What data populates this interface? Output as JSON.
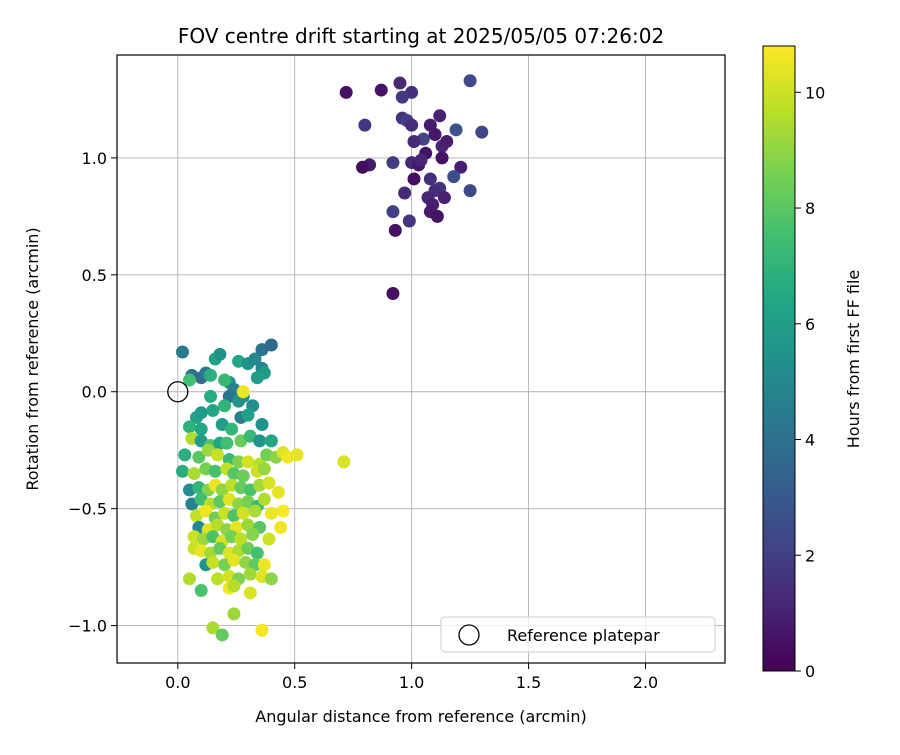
{
  "chart_data": {
    "type": "scatter",
    "title": "FOV centre drift starting at 2025/05/05 07:26:02",
    "xlabel": "Angular distance from reference (arcmin)",
    "ylabel": "Rotation from reference (arcmin)",
    "xlim": [
      -0.26,
      2.34
    ],
    "ylim": [
      -1.16,
      1.44
    ],
    "xticks": [
      "0.0",
      "0.5",
      "1.0",
      "1.5",
      "2.0"
    ],
    "yticks": [
      "−1.0",
      "−0.5",
      "0.0",
      "0.5",
      "1.0"
    ],
    "grid": true,
    "colorbar": {
      "label": "Hours from first FF file",
      "colormap": "viridis",
      "range": [
        0,
        10.8
      ],
      "ticks": [
        "0",
        "2",
        "4",
        "6",
        "8",
        "10"
      ]
    },
    "legend": {
      "location": "lower-right",
      "entries": [
        {
          "label": "Reference platepar",
          "marker": "open-circle",
          "x": 0.0,
          "y": 0.0
        }
      ]
    },
    "series": [
      {
        "points": [
          [
            0.92,
            0.42,
            0.4
          ],
          [
            0.72,
            1.28,
            0.5
          ],
          [
            0.87,
            1.29,
            0.6
          ],
          [
            0.95,
            1.32,
            1.2
          ],
          [
            1.0,
            1.28,
            1.5
          ],
          [
            0.96,
            1.26,
            1.8
          ],
          [
            1.25,
            1.33,
            2.5
          ],
          [
            1.3,
            1.11,
            2.3
          ],
          [
            1.19,
            1.12,
            2.8
          ],
          [
            1.12,
            1.18,
            1.0
          ],
          [
            1.08,
            1.14,
            0.8
          ],
          [
            1.1,
            1.1,
            0.7
          ],
          [
            0.96,
            1.17,
            1.6
          ],
          [
            0.98,
            1.16,
            2.0
          ],
          [
            1.0,
            1.14,
            1.4
          ],
          [
            0.8,
            1.14,
            1.7
          ],
          [
            1.05,
            1.08,
            2.2
          ],
          [
            1.01,
            1.07,
            1.3
          ],
          [
            1.13,
            1.05,
            1.1
          ],
          [
            1.15,
            1.07,
            0.9
          ],
          [
            1.06,
            1.02,
            0.6
          ],
          [
            1.13,
            1.0,
            0.5
          ],
          [
            0.82,
            0.97,
            0.8
          ],
          [
            0.79,
            0.96,
            0.3
          ],
          [
            0.92,
            0.98,
            1.9
          ],
          [
            1.0,
            0.98,
            1.2
          ],
          [
            1.03,
            0.97,
            0.7
          ],
          [
            1.04,
            0.99,
            1.1
          ],
          [
            1.21,
            0.96,
            0.9
          ],
          [
            1.18,
            0.92,
            2.6
          ],
          [
            1.01,
            0.91,
            0.4
          ],
          [
            1.08,
            0.91,
            1.5
          ],
          [
            1.12,
            0.87,
            1.8
          ],
          [
            1.1,
            0.86,
            1.4
          ],
          [
            0.97,
            0.85,
            1.3
          ],
          [
            1.14,
            0.83,
            1.0
          ],
          [
            1.25,
            0.86,
            2.4
          ],
          [
            1.07,
            0.83,
            1.2
          ],
          [
            1.09,
            0.8,
            0.9
          ],
          [
            1.08,
            0.77,
            0.8
          ],
          [
            0.92,
            0.77,
            2.1
          ],
          [
            1.11,
            0.75,
            0.6
          ],
          [
            0.99,
            0.73,
            1.6
          ],
          [
            0.93,
            0.69,
            0.5
          ],
          [
            0.02,
            0.17,
            4.5
          ],
          [
            0.06,
            0.07,
            4.2
          ],
          [
            0.1,
            0.06,
            3.8
          ],
          [
            0.12,
            0.08,
            4.4
          ],
          [
            0.16,
            0.14,
            6.2
          ],
          [
            0.18,
            0.16,
            5.4
          ],
          [
            0.14,
            0.07,
            6.8
          ],
          [
            0.22,
            0.04,
            5.5
          ],
          [
            0.26,
            0.13,
            6.4
          ],
          [
            0.3,
            0.12,
            5.6
          ],
          [
            0.33,
            0.14,
            5.1
          ],
          [
            0.36,
            0.18,
            4.0
          ],
          [
            0.4,
            0.2,
            3.7
          ],
          [
            0.36,
            0.1,
            4.9
          ],
          [
            0.37,
            0.08,
            5.8
          ],
          [
            0.34,
            0.06,
            6.0
          ],
          [
            0.05,
            0.05,
            7.5
          ],
          [
            0.2,
            0.05,
            7.2
          ],
          [
            0.24,
            0.01,
            4.7
          ],
          [
            0.28,
            -0.02,
            5.1
          ],
          [
            0.14,
            -0.02,
            6.6
          ],
          [
            0.22,
            -0.02,
            4.1
          ],
          [
            0.2,
            -0.06,
            7.0
          ],
          [
            0.26,
            -0.04,
            5.5
          ],
          [
            0.32,
            -0.06,
            5.3
          ],
          [
            0.36,
            -0.14,
            5.4
          ],
          [
            0.08,
            -0.11,
            6.2
          ],
          [
            0.1,
            -0.09,
            5.8
          ],
          [
            0.15,
            -0.08,
            6.3
          ],
          [
            0.27,
            -0.11,
            4.6
          ],
          [
            0.3,
            -0.1,
            6.1
          ],
          [
            0.05,
            -0.15,
            6.9
          ],
          [
            0.1,
            -0.16,
            6.5
          ],
          [
            0.19,
            -0.14,
            6.0
          ],
          [
            0.23,
            -0.16,
            7.1
          ],
          [
            0.06,
            -0.2,
            9.5
          ],
          [
            0.1,
            -0.21,
            5.9
          ],
          [
            0.14,
            -0.23,
            7.8
          ],
          [
            0.18,
            -0.22,
            6.4
          ],
          [
            0.21,
            -0.22,
            7.5
          ],
          [
            0.27,
            -0.21,
            8.3
          ],
          [
            0.31,
            -0.19,
            7.2
          ],
          [
            0.35,
            -0.21,
            5.6
          ],
          [
            0.4,
            -0.21,
            6.4
          ],
          [
            0.03,
            -0.27,
            6.8
          ],
          [
            0.09,
            -0.28,
            8.0
          ],
          [
            0.13,
            -0.25,
            9.2
          ],
          [
            0.17,
            -0.27,
            9.9
          ],
          [
            0.22,
            -0.29,
            7.3
          ],
          [
            0.26,
            -0.3,
            8.7
          ],
          [
            0.3,
            -0.3,
            10.1
          ],
          [
            0.35,
            -0.31,
            9.6
          ],
          [
            0.38,
            -0.27,
            8.5
          ],
          [
            0.42,
            -0.28,
            8.9
          ],
          [
            0.45,
            -0.26,
            10.3
          ],
          [
            0.47,
            -0.28,
            10.6
          ],
          [
            0.51,
            -0.27,
            10.4
          ],
          [
            0.71,
            -0.3,
            10.2
          ],
          [
            0.02,
            -0.34,
            6.7
          ],
          [
            0.07,
            -0.35,
            9.4
          ],
          [
            0.12,
            -0.33,
            8.6
          ],
          [
            0.16,
            -0.34,
            7.6
          ],
          [
            0.21,
            -0.33,
            9.8
          ],
          [
            0.24,
            -0.35,
            7.9
          ],
          [
            0.28,
            -0.36,
            8.4
          ],
          [
            0.34,
            -0.34,
            10.0
          ],
          [
            0.37,
            -0.33,
            9.1
          ],
          [
            0.05,
            -0.42,
            5.2
          ],
          [
            0.09,
            -0.41,
            7.0
          ],
          [
            0.13,
            -0.42,
            8.8
          ],
          [
            0.16,
            -0.4,
            10.5
          ],
          [
            0.19,
            -0.42,
            9.0
          ],
          [
            0.23,
            -0.4,
            9.7
          ],
          [
            0.27,
            -0.41,
            8.2
          ],
          [
            0.31,
            -0.42,
            7.7
          ],
          [
            0.35,
            -0.4,
            9.3
          ],
          [
            0.39,
            -0.39,
            10.2
          ],
          [
            0.43,
            -0.43,
            10.4
          ],
          [
            0.06,
            -0.48,
            4.8
          ],
          [
            0.1,
            -0.46,
            7.4
          ],
          [
            0.14,
            -0.48,
            9.6
          ],
          [
            0.18,
            -0.47,
            8.1
          ],
          [
            0.22,
            -0.46,
            10.3
          ],
          [
            0.26,
            -0.48,
            9.0
          ],
          [
            0.3,
            -0.47,
            8.6
          ],
          [
            0.34,
            -0.49,
            7.2
          ],
          [
            0.37,
            -0.46,
            9.5
          ],
          [
            0.08,
            -0.53,
            9.8
          ],
          [
            0.12,
            -0.51,
            10.6
          ],
          [
            0.16,
            -0.54,
            8.4
          ],
          [
            0.2,
            -0.52,
            9.9
          ],
          [
            0.24,
            -0.53,
            7.8
          ],
          [
            0.28,
            -0.52,
            10.1
          ],
          [
            0.33,
            -0.51,
            9.4
          ],
          [
            0.4,
            -0.52,
            10.5
          ],
          [
            0.45,
            -0.51,
            10.7
          ],
          [
            0.09,
            -0.58,
            5.0
          ],
          [
            0.13,
            -0.59,
            10.3
          ],
          [
            0.17,
            -0.57,
            9.6
          ],
          [
            0.21,
            -0.59,
            8.9
          ],
          [
            0.25,
            -0.58,
            10.4
          ],
          [
            0.3,
            -0.57,
            9.2
          ],
          [
            0.35,
            -0.58,
            8.0
          ],
          [
            0.44,
            -0.58,
            10.6
          ],
          [
            0.07,
            -0.62,
            10.0
          ],
          [
            0.11,
            -0.63,
            9.2
          ],
          [
            0.15,
            -0.62,
            7.7
          ],
          [
            0.19,
            -0.64,
            10.2
          ],
          [
            0.23,
            -0.62,
            8.5
          ],
          [
            0.27,
            -0.63,
            9.7
          ],
          [
            0.32,
            -0.61,
            8.8
          ],
          [
            0.39,
            -0.63,
            10.0
          ],
          [
            0.07,
            -0.67,
            9.9
          ],
          [
            0.1,
            -0.68,
            10.5
          ],
          [
            0.14,
            -0.69,
            9.3
          ],
          [
            0.18,
            -0.67,
            8.2
          ],
          [
            0.22,
            -0.69,
            10.3
          ],
          [
            0.26,
            -0.68,
            9.5
          ],
          [
            0.3,
            -0.67,
            8.4
          ],
          [
            0.34,
            -0.69,
            7.6
          ],
          [
            0.12,
            -0.74,
            5.5
          ],
          [
            0.15,
            -0.73,
            9.9
          ],
          [
            0.2,
            -0.74,
            8.6
          ],
          [
            0.24,
            -0.72,
            10.4
          ],
          [
            0.29,
            -0.73,
            9.0
          ],
          [
            0.33,
            -0.74,
            8.1
          ],
          [
            0.37,
            -0.74,
            10.5
          ],
          [
            0.05,
            -0.8,
            9.5
          ],
          [
            0.17,
            -0.8,
            9.7
          ],
          [
            0.22,
            -0.79,
            10.1
          ],
          [
            0.26,
            -0.8,
            8.7
          ],
          [
            0.31,
            -0.78,
            9.2
          ],
          [
            0.36,
            -0.79,
            10.3
          ],
          [
            0.4,
            -0.8,
            8.9
          ],
          [
            0.1,
            -0.85,
            7.7
          ],
          [
            0.22,
            -0.84,
            10.6
          ],
          [
            0.24,
            -0.83,
            9.6
          ],
          [
            0.31,
            -0.86,
            10.2
          ],
          [
            0.24,
            -0.95,
            9.2
          ],
          [
            0.15,
            -1.01,
            9.4
          ],
          [
            0.19,
            -1.04,
            8.2
          ],
          [
            0.36,
            -1.02,
            10.7
          ],
          [
            0.28,
            0.0,
            10.5
          ]
        ]
      }
    ]
  }
}
